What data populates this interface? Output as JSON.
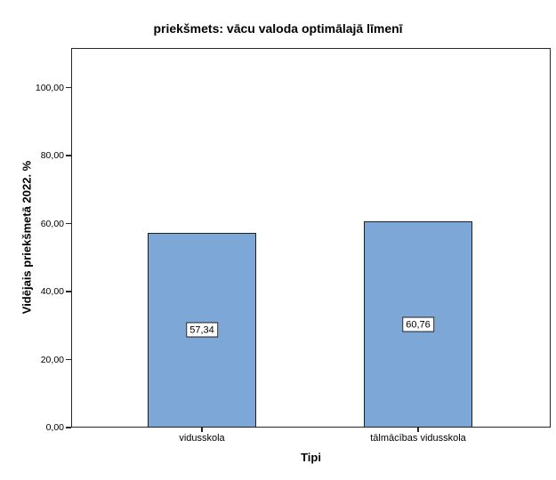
{
  "chart_data": {
    "type": "bar",
    "title": "priekšmets: vācu valoda optimālajā līmenī",
    "xlabel": "Tipi",
    "ylabel": "Vidējais priekšmetā 2022. %",
    "categories": [
      "vidusskola",
      "tālmācības vidusskola"
    ],
    "values": [
      57.34,
      60.76
    ],
    "value_labels": [
      "57,34",
      "60,76"
    ],
    "yticks": [
      0,
      20,
      40,
      60,
      80,
      100
    ],
    "ytick_labels": [
      "0,00",
      "20,00",
      "40,00",
      "60,00",
      "80,00",
      "100,00"
    ],
    "ylim": [
      0,
      111.7
    ],
    "grid": false,
    "legend_position": "none",
    "bar_color": "#7CA7D6",
    "bar_border_color": "#1f1f1f",
    "frame_color": "#262626",
    "background_color": "#ffffff"
  }
}
